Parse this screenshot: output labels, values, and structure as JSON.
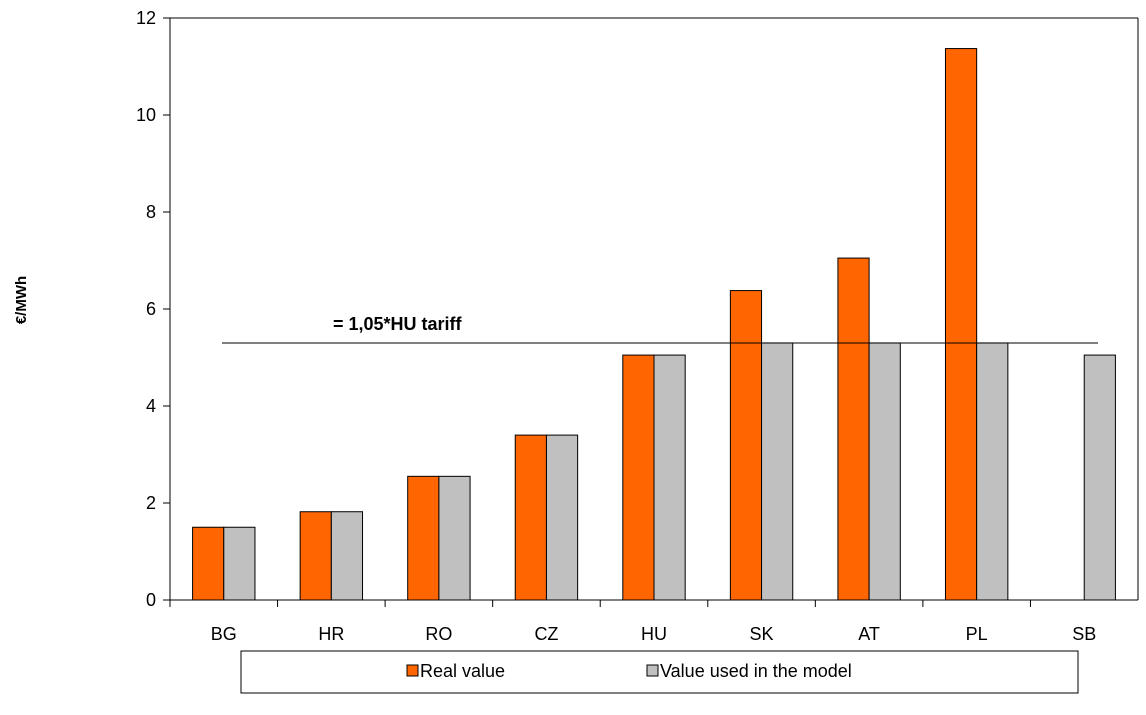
{
  "chart_data": {
    "type": "bar",
    "categories": [
      "BG",
      "HR",
      "RO",
      "CZ",
      "HU",
      "SK",
      "AT",
      "PL",
      "SB"
    ],
    "series": [
      {
        "name": "Real value",
        "values": [
          1.5,
          1.82,
          2.55,
          3.4,
          5.05,
          6.38,
          7.05,
          11.37,
          null
        ],
        "color": "#ff6600"
      },
      {
        "name": "Value used in the model",
        "values": [
          1.5,
          1.82,
          2.55,
          3.4,
          5.05,
          5.3,
          5.3,
          5.3,
          5.05
        ],
        "color": "#c0c0c0"
      }
    ],
    "ylabel": "€/MWh",
    "ylim": [
      0,
      12
    ],
    "yticks": [
      0,
      2,
      4,
      6,
      8,
      10,
      12
    ],
    "reference_line": {
      "value": 5.3,
      "label": "= 1,05*HU tariff"
    },
    "grid": false,
    "legend_position": "bottom"
  }
}
